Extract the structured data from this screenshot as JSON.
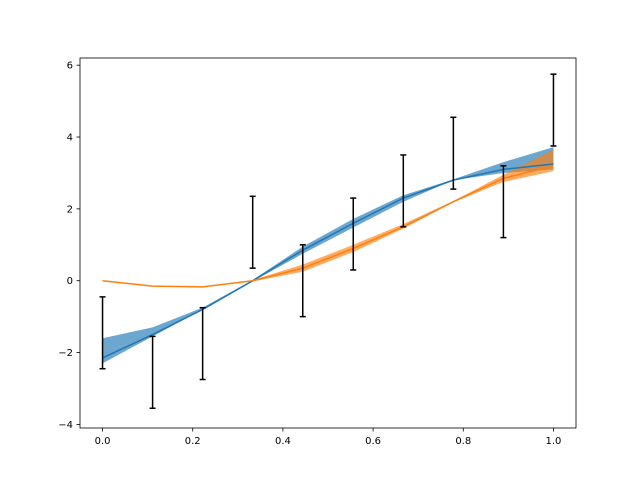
{
  "chart_data": {
    "type": "line",
    "title": "",
    "xlabel": "",
    "ylabel": "",
    "xlim": [
      -0.05,
      1.05
    ],
    "ylim": [
      -4.1,
      6.2
    ],
    "x_ticks": [
      0.0,
      0.2,
      0.4,
      0.6,
      0.8,
      1.0
    ],
    "x_tick_labels": [
      "0.0",
      "0.2",
      "0.4",
      "0.6",
      "0.8",
      "1.0"
    ],
    "y_ticks": [
      -4,
      -2,
      0,
      2,
      4,
      6
    ],
    "y_tick_labels": [
      "−4",
      "−2",
      "0",
      "2",
      "4",
      "6"
    ],
    "grid": false,
    "legend": "none",
    "series": [
      {
        "color": "#1f77b4",
        "band_alpha": 0.65,
        "x": [
          0.0,
          0.111,
          0.222,
          0.333,
          0.444,
          0.556,
          0.667,
          0.778,
          0.889,
          1.0
        ],
        "mean": [
          -2.15,
          -1.5,
          -0.8,
          0.0,
          0.85,
          1.6,
          2.3,
          2.8,
          3.1,
          3.25
        ],
        "lower": [
          -2.3,
          -1.55,
          -0.8,
          -0.02,
          0.75,
          1.48,
          2.2,
          2.8,
          3.0,
          3.1
        ],
        "upper": [
          -1.6,
          -1.3,
          -0.75,
          0.02,
          0.95,
          1.72,
          2.38,
          2.82,
          3.3,
          3.72
        ]
      },
      {
        "color": "#ff7f0e",
        "band_alpha": 0.65,
        "x": [
          0.0,
          0.111,
          0.222,
          0.333,
          0.444,
          0.556,
          0.667,
          0.778,
          0.889,
          1.0
        ],
        "mean": [
          0.0,
          -0.15,
          -0.17,
          0.0,
          0.35,
          0.9,
          1.5,
          2.2,
          2.85,
          3.2
        ],
        "lower": [
          0.0,
          -0.15,
          -0.17,
          -0.02,
          0.25,
          0.8,
          1.45,
          2.18,
          2.75,
          3.05
        ],
        "upper": [
          0.0,
          -0.15,
          -0.17,
          0.02,
          0.45,
          1.0,
          1.58,
          2.22,
          2.95,
          3.65
        ]
      }
    ],
    "error_bars": {
      "color": "#000000",
      "x": [
        0.0,
        0.111,
        0.222,
        0.333,
        0.444,
        0.556,
        0.667,
        0.778,
        0.889,
        1.0
      ],
      "y": [
        -1.45,
        -2.55,
        -1.75,
        1.35,
        0.0,
        1.3,
        2.5,
        3.55,
        2.2,
        4.75
      ],
      "err": 1.0
    }
  }
}
